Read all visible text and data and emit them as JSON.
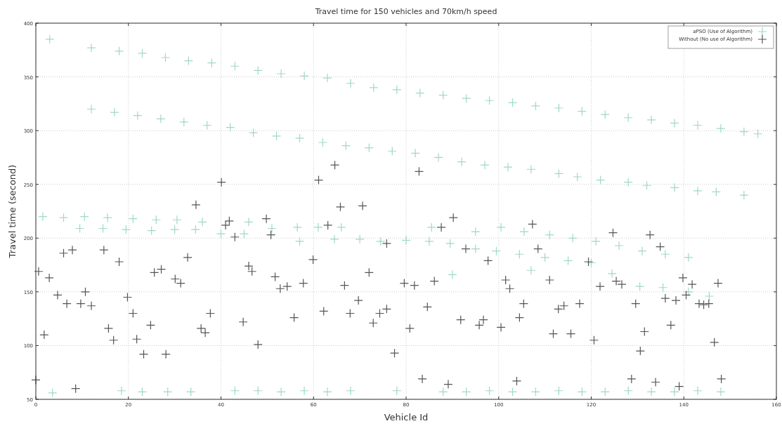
{
  "chart_data": {
    "type": "scatter",
    "title": "Travel time for 150 vehicles and 70km/h speed",
    "xlabel": "Vehicle Id",
    "ylabel": "Travel time (second)",
    "xlim": [
      0,
      160
    ],
    "xticks": [
      0,
      20,
      40,
      60,
      80,
      100,
      120,
      140,
      160
    ],
    "ylim": [
      50,
      400
    ],
    "yticks": [
      50,
      100,
      150,
      200,
      250,
      300,
      350,
      400
    ],
    "grid": true,
    "legend": "top right",
    "marker": "cross",
    "series": [
      {
        "name": "aPSO (Use of Algorithm)",
        "color": "#9fd8cc",
        "x": [
          3,
          12,
          18,
          23,
          28,
          33,
          38,
          43,
          48,
          53,
          58,
          63,
          68,
          73,
          78,
          83,
          88,
          93,
          98,
          103,
          108,
          113,
          118,
          123,
          128,
          133,
          138,
          143,
          148,
          153,
          156,
          12,
          17,
          22,
          27,
          32,
          37,
          42,
          47,
          52,
          57,
          62,
          67,
          72,
          77,
          82,
          87,
          92,
          97,
          102,
          107,
          113,
          117,
          122,
          128,
          132,
          138,
          143,
          147,
          153,
          1.5,
          6,
          10.5,
          15.5,
          21,
          26,
          30.5,
          36,
          9.5,
          14.5,
          19.5,
          25,
          30,
          34.5,
          40,
          45,
          46,
          51,
          56.5,
          61,
          66,
          57,
          64.5,
          70,
          74.5,
          80,
          85,
          89.5,
          95,
          99.5,
          104.5,
          110,
          115,
          120,
          85.5,
          95,
          100.5,
          105.5,
          111,
          116,
          121,
          126,
          131,
          136,
          141,
          107,
          90,
          130.5,
          135.5,
          141,
          145.5,
          124.5,
          3.6,
          18.5,
          23,
          28.5,
          33.5,
          43,
          48,
          53,
          58,
          63,
          68,
          78,
          88,
          93,
          98,
          103,
          108,
          113,
          118,
          123,
          128,
          133,
          138,
          143,
          148
        ],
        "values": [
          385,
          377,
          374,
          372,
          368,
          365,
          363,
          360,
          356,
          353,
          351,
          349,
          344,
          340,
          338,
          335,
          333,
          330,
          328,
          326,
          323,
          321,
          318,
          315,
          312,
          310,
          307,
          305,
          302,
          299,
          297,
          320,
          317,
          314,
          311,
          308,
          305,
          303,
          298,
          295,
          293,
          289,
          286,
          284,
          281,
          279,
          275,
          271,
          268,
          266,
          264,
          260,
          257,
          254,
          252,
          249,
          247,
          244,
          243,
          240,
          220,
          219,
          220,
          219,
          218,
          217,
          217,
          215,
          209,
          209,
          208,
          207,
          208,
          208,
          204,
          204,
          215,
          209,
          210,
          210,
          210,
          197,
          199,
          199,
          197,
          198,
          197,
          195,
          190,
          188,
          185,
          182,
          179,
          177,
          210,
          206,
          210,
          206,
          203,
          200,
          197,
          193,
          188,
          185,
          182,
          170,
          166,
          155,
          154,
          150,
          146,
          167,
          56,
          58,
          57,
          57,
          57,
          58,
          58,
          57,
          58,
          57,
          58,
          58,
          57,
          57,
          58,
          57,
          57,
          58,
          57,
          57,
          58,
          57,
          57,
          58,
          57
        ]
      },
      {
        "name": "Without (No use of Algorithm)",
        "color": "#555555",
        "x": [
          0,
          0.6,
          2.9,
          1.8,
          4.7,
          6.7,
          6,
          7.9,
          9.7,
          10.7,
          12,
          14.7,
          15.7,
          16.8,
          18,
          19.8,
          21,
          21.8,
          23.3,
          24.8,
          25.6,
          27.1,
          28.1,
          30.1,
          31.3,
          32.8,
          34.6,
          35.7,
          36.6,
          37.7,
          40.1,
          41,
          41.8,
          43,
          44.8,
          46,
          46.7,
          48,
          49.8,
          50.8,
          51.7,
          52.8,
          54.3,
          55.8,
          57.8,
          59.9,
          61.1,
          62.2,
          63.1,
          64.6,
          65.8,
          66.7,
          67.9,
          69.7,
          70.6,
          72,
          72.9,
          74.3,
          75.8,
          75.8,
          77.5,
          79.6,
          80.8,
          81.8,
          82.8,
          83.5,
          84.6,
          86.1,
          87.6,
          89.1,
          90.2,
          91.8,
          92.9,
          95.8,
          96.7,
          97.7,
          100.5,
          101.5,
          102.4,
          103.9,
          104.5,
          105.4,
          107.3,
          108.5,
          111,
          111.8,
          112.9,
          114.1,
          115.6,
          117.5,
          119.4,
          120.6,
          121.9,
          124.7,
          125.4,
          126.6,
          128.7,
          129.6,
          130.6,
          131.5,
          132.7,
          133.9,
          134.9,
          136,
          137.2,
          138.3,
          139,
          139.8,
          140.5,
          141.8,
          143.3,
          144.3,
          145.4,
          146.6,
          147.4,
          148.1,
          8.6
        ],
        "values": [
          68,
          169,
          163,
          110,
          147,
          139,
          186,
          189,
          139,
          150,
          137,
          189,
          116,
          105,
          178,
          145,
          130,
          106,
          92,
          119,
          168,
          171,
          92,
          162,
          158,
          182,
          231,
          116,
          112,
          130,
          252,
          212,
          216,
          201,
          122,
          174,
          169,
          101,
          218,
          203,
          164,
          153,
          155,
          126,
          158,
          180,
          254,
          132,
          212,
          268,
          229,
          156,
          130,
          142,
          230,
          168,
          121,
          130,
          134,
          195,
          93,
          158,
          116,
          156,
          262,
          69,
          136,
          160,
          210,
          64,
          219,
          124,
          190,
          119,
          124,
          179,
          117,
          161,
          153,
          67,
          126,
          139,
          213,
          190,
          161,
          111,
          134,
          137,
          111,
          139,
          178,
          105,
          155,
          205,
          160,
          157,
          69,
          139,
          95,
          113,
          203,
          66,
          192,
          144,
          119,
          142,
          62,
          163,
          147,
          157,
          139,
          138,
          139,
          103,
          158,
          69,
          60
        ]
      }
    ]
  }
}
